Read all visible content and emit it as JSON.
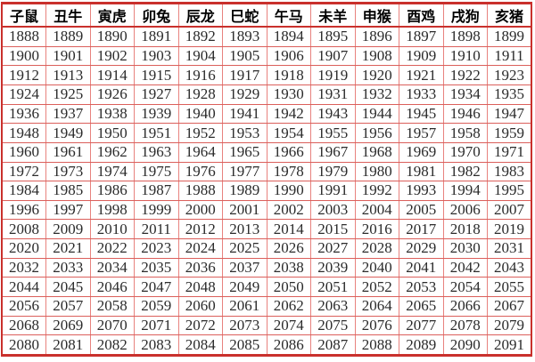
{
  "colors": {
    "border_outer": "#c9302c",
    "border_horizontal": "#db5f5b",
    "border_vertical": "#e8827e",
    "header_text": "#000000",
    "cell_text": "#2b2b2b",
    "background": "#ffffff"
  },
  "table": {
    "headers": [
      "子鼠",
      "丑牛",
      "寅虎",
      "卯兔",
      "辰龙",
      "巳蛇",
      "午马",
      "未羊",
      "申猴",
      "酉鸡",
      "戌狗",
      "亥猪"
    ],
    "rows": [
      [
        1888,
        1889,
        1890,
        1891,
        1892,
        1893,
        1894,
        1895,
        1896,
        1897,
        1898,
        1899
      ],
      [
        1900,
        1901,
        1902,
        1903,
        1904,
        1905,
        1906,
        1907,
        1908,
        1909,
        1910,
        1911
      ],
      [
        1912,
        1913,
        1914,
        1915,
        1916,
        1917,
        1918,
        1919,
        1920,
        1921,
        1922,
        1923
      ],
      [
        1924,
        1925,
        1926,
        1927,
        1928,
        1929,
        1930,
        1931,
        1932,
        1933,
        1934,
        1935
      ],
      [
        1936,
        1937,
        1938,
        1939,
        1940,
        1941,
        1942,
        1943,
        1944,
        1945,
        1946,
        1947
      ],
      [
        1948,
        1949,
        1950,
        1951,
        1952,
        1953,
        1954,
        1955,
        1956,
        1957,
        1958,
        1959
      ],
      [
        1960,
        1961,
        1962,
        1963,
        1964,
        1965,
        1966,
        1967,
        1968,
        1969,
        1970,
        1971
      ],
      [
        1972,
        1973,
        1974,
        1975,
        1976,
        1977,
        1978,
        1979,
        1980,
        1981,
        1982,
        1983
      ],
      [
        1984,
        1985,
        1986,
        1987,
        1988,
        1989,
        1990,
        1991,
        1992,
        1993,
        1994,
        1995
      ],
      [
        1996,
        1997,
        1998,
        1999,
        2000,
        2001,
        2002,
        2003,
        2004,
        2005,
        2006,
        2007
      ],
      [
        2008,
        2009,
        2010,
        2011,
        2012,
        2013,
        2014,
        2015,
        2016,
        2017,
        2018,
        2019
      ],
      [
        2020,
        2021,
        2022,
        2023,
        2024,
        2025,
        2026,
        2027,
        2028,
        2029,
        2030,
        2031
      ],
      [
        2032,
        2033,
        2034,
        2035,
        2036,
        2037,
        2038,
        2039,
        2040,
        2041,
        2042,
        2043
      ],
      [
        2044,
        2045,
        2046,
        2047,
        2048,
        2049,
        2050,
        2051,
        2052,
        2053,
        2054,
        2055
      ],
      [
        2056,
        2057,
        2058,
        2059,
        2060,
        2061,
        2062,
        2063,
        2064,
        2065,
        2066,
        2067
      ],
      [
        2068,
        2069,
        2070,
        2071,
        2072,
        2073,
        2074,
        2075,
        2076,
        2077,
        2078,
        2079
      ],
      [
        2080,
        2081,
        2082,
        2083,
        2084,
        2085,
        2086,
        2087,
        2088,
        2089,
        2090,
        2091
      ]
    ]
  }
}
